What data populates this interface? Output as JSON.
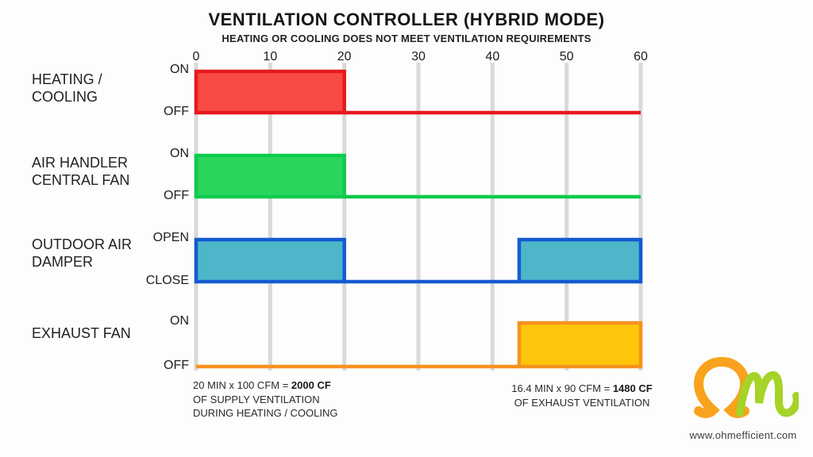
{
  "header": {
    "title": "VENTILATION CONTROLLER (HYBRID MODE)",
    "subtitle": "HEATING OR COOLING DOES NOT MEET VENTILATION REQUIREMENTS"
  },
  "annotations": {
    "supply": {
      "line1_prefix": "20 MIN x 100 CFM = ",
      "line1_bold": "2000 CF",
      "line2": "OF SUPPLY VENTILATION",
      "line3": "DURING HEATING / COOLING"
    },
    "exhaust": {
      "line1_prefix": "16.4 MIN x 90 CFM = ",
      "line1_bold": "1480 CF",
      "line2": "OF EXHAUST VENTILATION"
    }
  },
  "logo": {
    "website": "www.ohmefficient.com",
    "omega_color": "#f9a21d",
    "m_color": "#a5d327"
  },
  "chart_data": {
    "type": "step-timeline",
    "title": "VENTILATION CONTROLLER (HYBRID MODE)",
    "subtitle": "HEATING OR COOLING DOES NOT MEET VENTILATION REQUIREMENTS",
    "x_unit": "MIN",
    "xlim": [
      0,
      60
    ],
    "x_ticks": [
      0,
      10,
      20,
      30,
      40,
      50,
      60
    ],
    "grid": true,
    "grid_color": "#d9d9d9",
    "series": [
      {
        "name": "HEATING / COOLING",
        "label_lines": [
          "HEATING /",
          "COOLING"
        ],
        "levels": {
          "high": "ON",
          "low": "OFF"
        },
        "fill": "#f94b46",
        "stroke": "#e6191e",
        "intervals": [
          {
            "state": "ON",
            "start": 0,
            "end": 20
          },
          {
            "state": "OFF",
            "start": 20,
            "end": 60
          }
        ]
      },
      {
        "name": "AIR HANDLER CENTRAL FAN",
        "label_lines": [
          "AIR HANDLER",
          "CENTRAL FAN"
        ],
        "levels": {
          "high": "ON",
          "low": "OFF"
        },
        "fill": "#2ad55e",
        "stroke": "#0ecb4c",
        "intervals": [
          {
            "state": "ON",
            "start": 0,
            "end": 20
          },
          {
            "state": "OFF",
            "start": 20,
            "end": 60
          }
        ]
      },
      {
        "name": "OUTDOOR AIR DAMPER",
        "label_lines": [
          "OUTDOOR AIR",
          "DAMPER"
        ],
        "levels": {
          "high": "OPEN",
          "low": "CLOSE"
        },
        "fill": "#4db6c9",
        "stroke": "#155ad1",
        "intervals": [
          {
            "state": "OPEN",
            "start": 0,
            "end": 20
          },
          {
            "state": "CLOSE",
            "start": 20,
            "end": 43.6
          },
          {
            "state": "OPEN",
            "start": 43.6,
            "end": 60
          }
        ]
      },
      {
        "name": "EXHAUST FAN",
        "label_lines": [
          "EXHAUST FAN"
        ],
        "levels": {
          "high": "ON",
          "low": "OFF"
        },
        "fill": "#fec60a",
        "stroke": "#f6921e",
        "intervals": [
          {
            "state": "OFF",
            "start": 0,
            "end": 43.6
          },
          {
            "state": "ON",
            "start": 43.6,
            "end": 60
          }
        ]
      }
    ],
    "annotations": [
      "20 MIN x 100 CFM = 2000 CF OF SUPPLY VENTILATION DURING HEATING / COOLING",
      "16.4 MIN x 90 CFM = 1480 CF OF EXHAUST VENTILATION"
    ]
  }
}
